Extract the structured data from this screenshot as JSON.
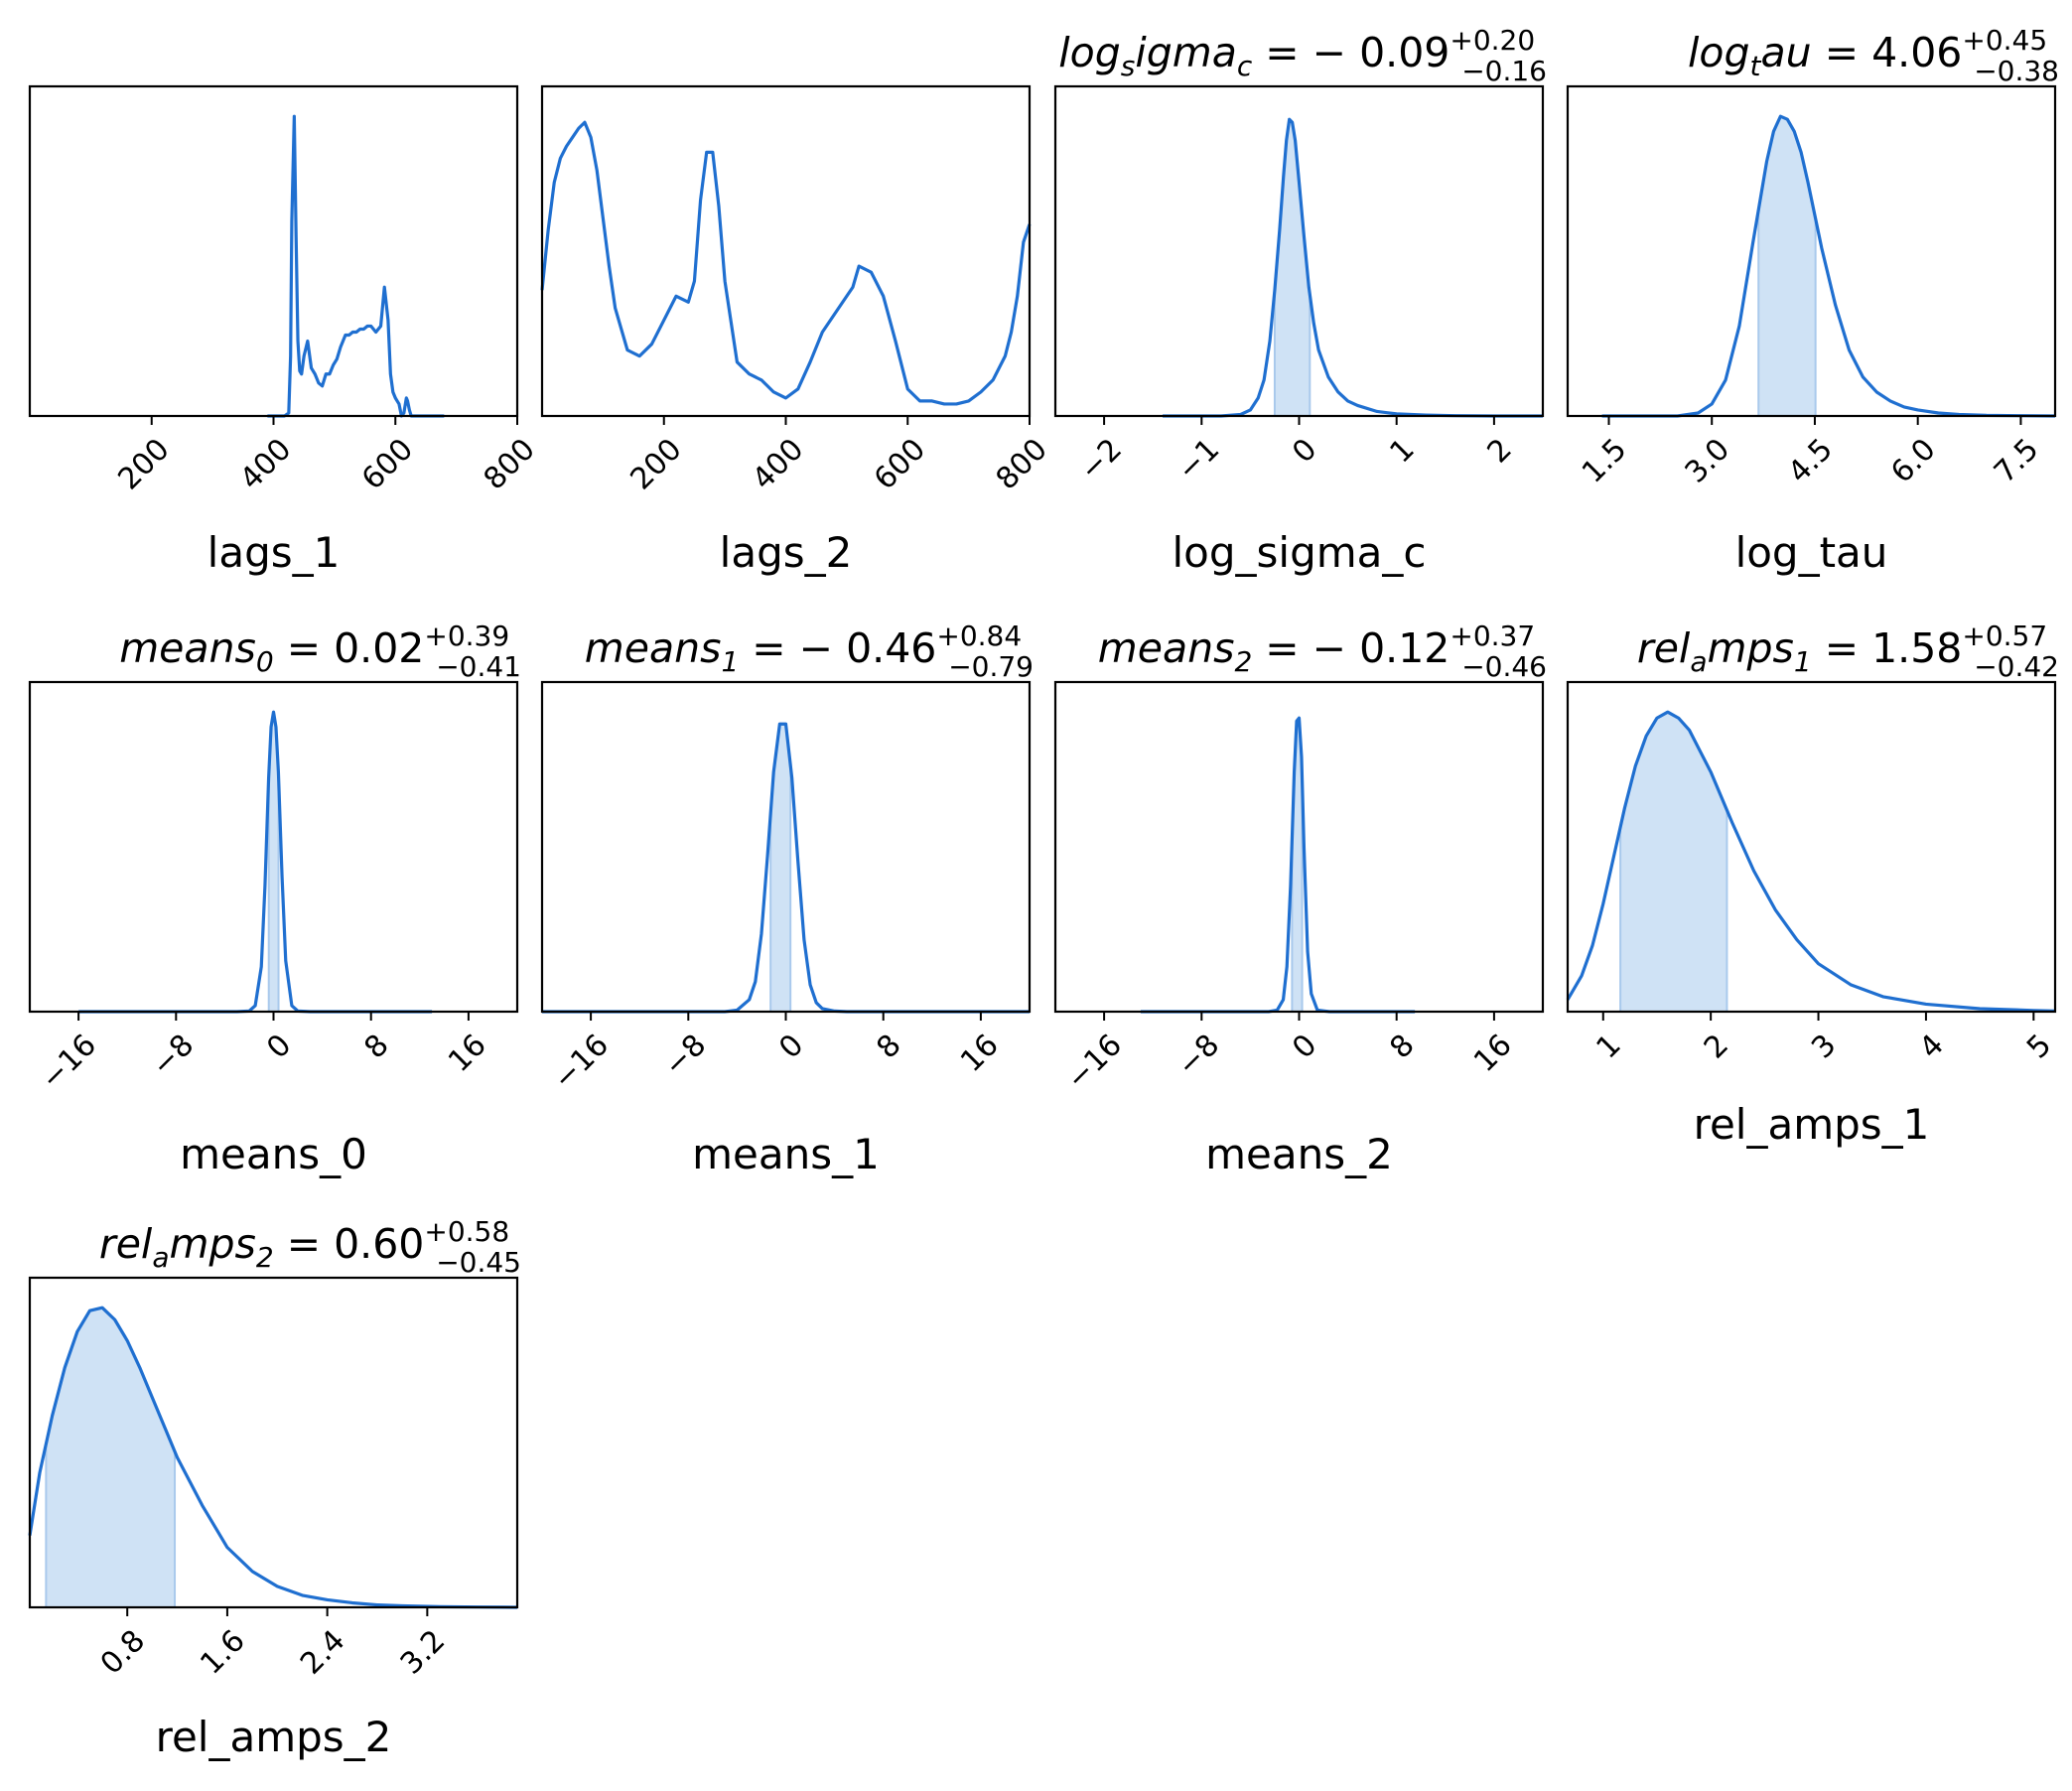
{
  "colors": {
    "line": "#1f6fd0",
    "fill": "#cfe2f5",
    "axis": "#000000"
  },
  "chart_data": [
    {
      "type": "line",
      "name": "lags_1",
      "title": null,
      "xlabel": "lags_1",
      "xlim": [
        0,
        800
      ],
      "ylim": [
        0,
        1.1
      ],
      "ticks": [
        200,
        400,
        600,
        800
      ],
      "x": [
        390,
        418,
        425,
        428,
        430,
        434,
        437,
        440,
        443,
        446,
        450,
        456,
        462,
        468,
        474,
        480,
        486,
        492,
        498,
        504,
        510,
        514,
        518,
        524,
        530,
        536,
        542,
        548,
        554,
        560,
        568,
        576,
        582,
        588,
        592,
        596,
        600,
        603,
        606,
        610,
        614,
        618,
        620,
        623,
        626,
        630,
        634,
        640,
        650,
        680
      ],
      "y": [
        0,
        0,
        0.01,
        0.2,
        0.65,
        1.0,
        0.6,
        0.25,
        0.15,
        0.14,
        0.2,
        0.25,
        0.16,
        0.14,
        0.11,
        0.1,
        0.14,
        0.14,
        0.17,
        0.19,
        0.23,
        0.25,
        0.27,
        0.27,
        0.28,
        0.28,
        0.29,
        0.29,
        0.3,
        0.3,
        0.28,
        0.3,
        0.43,
        0.32,
        0.14,
        0.08,
        0.06,
        0.05,
        0.04,
        0.0,
        0.01,
        0.06,
        0.05,
        0.02,
        0.0,
        0.0,
        0.0,
        0.0,
        0.0,
        0.0
      ],
      "band": null
    },
    {
      "type": "line",
      "name": "lags_2",
      "title": null,
      "xlabel": "lags_2",
      "xlim": [
        0,
        800
      ],
      "ylim": [
        0,
        1.1
      ],
      "ticks": [
        200,
        400,
        600,
        800
      ],
      "x": [
        0,
        10,
        20,
        30,
        40,
        50,
        60,
        70,
        80,
        90,
        100,
        110,
        120,
        140,
        160,
        180,
        200,
        220,
        240,
        250,
        260,
        270,
        280,
        290,
        300,
        320,
        340,
        360,
        380,
        400,
        420,
        440,
        460,
        480,
        500,
        510,
        520,
        540,
        560,
        580,
        600,
        620,
        640,
        660,
        680,
        700,
        720,
        740,
        760,
        770,
        780,
        790,
        800
      ],
      "y": [
        0.42,
        0.62,
        0.78,
        0.86,
        0.9,
        0.93,
        0.96,
        0.98,
        0.93,
        0.82,
        0.66,
        0.5,
        0.36,
        0.22,
        0.2,
        0.24,
        0.32,
        0.4,
        0.38,
        0.45,
        0.72,
        0.88,
        0.88,
        0.7,
        0.45,
        0.18,
        0.14,
        0.12,
        0.08,
        0.06,
        0.09,
        0.18,
        0.28,
        0.34,
        0.4,
        0.43,
        0.5,
        0.48,
        0.4,
        0.25,
        0.09,
        0.05,
        0.05,
        0.04,
        0.04,
        0.05,
        0.08,
        0.12,
        0.2,
        0.28,
        0.4,
        0.58,
        0.64
      ],
      "band": null
    },
    {
      "type": "line",
      "name": "log_sigma_c",
      "title": "log_sigma_c = -0.09 +0.20 -0.16",
      "t_base": "log",
      "t_sub": "s",
      "t_rest": "igma",
      "t_sub2": "c",
      "t_val": " = − 0.09",
      "t_up": "+0.20",
      "t_dn": "−0.16",
      "xlabel": "log_sigma_c",
      "xlim": [
        -2.5,
        2.5
      ],
      "ylim": [
        0,
        1.1
      ],
      "ticks": [
        -2,
        -1,
        0,
        1,
        2
      ],
      "tick_labels": [
        "−2",
        "−1",
        "0",
        "1",
        "2"
      ],
      "x": [
        -1.4,
        -0.8,
        -0.6,
        -0.5,
        -0.42,
        -0.36,
        -0.3,
        -0.25,
        -0.2,
        -0.16,
        -0.13,
        -0.1,
        -0.07,
        -0.04,
        0.0,
        0.05,
        0.1,
        0.15,
        0.2,
        0.3,
        0.4,
        0.5,
        0.6,
        0.8,
        1.0,
        1.3,
        1.6,
        2.0,
        2.5
      ],
      "y": [
        0,
        0,
        0.005,
        0.02,
        0.06,
        0.12,
        0.25,
        0.42,
        0.62,
        0.8,
        0.92,
        0.99,
        0.98,
        0.92,
        0.78,
        0.6,
        0.43,
        0.31,
        0.22,
        0.13,
        0.08,
        0.05,
        0.035,
        0.015,
        0.007,
        0.003,
        0.001,
        0,
        0
      ],
      "band": [
        -0.25,
        0.11
      ]
    },
    {
      "type": "line",
      "name": "log_tau",
      "title": "log_tau = 4.06 +0.45 -0.38",
      "t_base": "log",
      "t_sub": "t",
      "t_rest": "au",
      "t_sub2": "",
      "t_val": " = 4.06",
      "t_up": "+0.45",
      "t_dn": "−0.38",
      "xlabel": "log_tau",
      "xlim": [
        0.9,
        8.0
      ],
      "ylim": [
        0,
        1.1
      ],
      "ticks": [
        1.5,
        3.0,
        4.5,
        6.0,
        7.5
      ],
      "tick_labels": [
        "1.5",
        "3.0",
        "4.5",
        "6.0",
        "7.5"
      ],
      "x": [
        1.4,
        2.5,
        2.8,
        3.0,
        3.2,
        3.4,
        3.6,
        3.8,
        3.9,
        4.0,
        4.1,
        4.2,
        4.3,
        4.4,
        4.5,
        4.6,
        4.8,
        5.0,
        5.2,
        5.4,
        5.6,
        5.8,
        6.0,
        6.3,
        6.6,
        7.0,
        7.5,
        8.0
      ],
      "y": [
        0,
        0,
        0.01,
        0.04,
        0.12,
        0.3,
        0.58,
        0.85,
        0.95,
        1.0,
        0.99,
        0.95,
        0.88,
        0.78,
        0.67,
        0.56,
        0.37,
        0.22,
        0.13,
        0.08,
        0.05,
        0.03,
        0.02,
        0.01,
        0.005,
        0.002,
        0.001,
        0
      ],
      "band": [
        3.68,
        4.51
      ]
    },
    {
      "type": "line",
      "name": "means_0",
      "title": "means_0 = 0.02 +0.39 -0.41",
      "t_base": "means",
      "t_sub": "0",
      "t_rest": "",
      "t_sub2": "",
      "t_val": " = 0.02",
      "t_up": "+0.39",
      "t_dn": "−0.41",
      "xlabel": "means_0",
      "xlim": [
        -20,
        20
      ],
      "ylim": [
        0,
        1.1
      ],
      "ticks": [
        -16,
        -8,
        0,
        8,
        16
      ],
      "tick_labels": [
        "−16",
        "−8",
        "0",
        "8",
        "16"
      ],
      "x": [
        -16,
        -3,
        -2,
        -1.5,
        -1,
        -0.7,
        -0.4,
        -0.2,
        0,
        0.2,
        0.4,
        0.7,
        1,
        1.5,
        2,
        3,
        13
      ],
      "y": [
        0,
        0,
        0.002,
        0.02,
        0.15,
        0.42,
        0.78,
        0.95,
        1.0,
        0.95,
        0.8,
        0.45,
        0.17,
        0.02,
        0.002,
        0,
        0
      ],
      "band": [
        -0.39,
        0.41
      ]
    },
    {
      "type": "line",
      "name": "means_1",
      "title": "means_1 = -0.46 +0.84 -0.79",
      "t_base": "means",
      "t_sub": "1",
      "t_rest": "",
      "t_sub2": "",
      "t_val": " = − 0.46",
      "t_up": "+0.84",
      "t_dn": "−0.79",
      "xlabel": "means_1",
      "xlim": [
        -20,
        20
      ],
      "ylim": [
        0,
        1.1
      ],
      "ticks": [
        -16,
        -8,
        0,
        8,
        16
      ],
      "tick_labels": [
        "−16",
        "−8",
        "0",
        "8",
        "16"
      ],
      "x": [
        -20,
        -5,
        -4,
        -3,
        -2.5,
        -2,
        -1.5,
        -1,
        -0.5,
        0,
        0.5,
        1,
        1.5,
        2,
        2.5,
        3,
        4,
        5,
        20
      ],
      "y": [
        0,
        0,
        0.005,
        0.04,
        0.1,
        0.26,
        0.52,
        0.8,
        0.96,
        0.96,
        0.78,
        0.5,
        0.24,
        0.09,
        0.03,
        0.01,
        0.002,
        0,
        0
      ],
      "band": [
        -1.25,
        0.38
      ]
    },
    {
      "type": "line",
      "name": "means_2",
      "title": "means_2 = -0.12 +0.37 -0.46",
      "t_base": "means",
      "t_sub": "2",
      "t_rest": "",
      "t_sub2": "",
      "t_val": " = − 0.12",
      "t_up": "+0.37",
      "t_dn": "−0.46",
      "xlabel": "means_2",
      "xlim": [
        -20,
        20
      ],
      "ylim": [
        0,
        1.1
      ],
      "ticks": [
        -16,
        -8,
        0,
        8,
        16
      ],
      "tick_labels": [
        "−16",
        "−8",
        "0",
        "8",
        "16"
      ],
      "x": [
        -13,
        -2.5,
        -1.8,
        -1.3,
        -1,
        -0.7,
        -0.4,
        -0.2,
        0,
        0.2,
        0.4,
        0.7,
        1,
        1.5,
        2.5,
        9.5
      ],
      "y": [
        0,
        0,
        0.005,
        0.04,
        0.15,
        0.42,
        0.8,
        0.97,
        0.98,
        0.85,
        0.55,
        0.2,
        0.06,
        0.005,
        0,
        0
      ],
      "band": [
        -0.58,
        0.25
      ]
    },
    {
      "type": "line",
      "name": "rel_amps_1",
      "title": "rel_amps_1 = 1.58 +0.57 -0.42",
      "t_base": "rel",
      "t_sub": "a",
      "t_rest": "mps",
      "t_sub2": "1",
      "t_val": " = 1.58",
      "t_up": "+0.57",
      "t_dn": "−0.42",
      "xlabel": "rel_amps_1",
      "xlim": [
        0.67,
        5.2
      ],
      "ylim": [
        0,
        1.1
      ],
      "ticks": [
        1,
        2,
        3,
        4,
        5
      ],
      "tick_labels": [
        "1",
        "2",
        "3",
        "4",
        "5"
      ],
      "x": [
        0.67,
        0.8,
        0.9,
        1.0,
        1.1,
        1.2,
        1.3,
        1.4,
        1.5,
        1.6,
        1.7,
        1.8,
        1.9,
        2.0,
        2.2,
        2.4,
        2.6,
        2.8,
        3.0,
        3.3,
        3.6,
        4.0,
        4.5,
        5.0,
        5.2
      ],
      "y": [
        0.04,
        0.12,
        0.22,
        0.36,
        0.52,
        0.68,
        0.82,
        0.92,
        0.98,
        1.0,
        0.98,
        0.94,
        0.87,
        0.8,
        0.63,
        0.47,
        0.34,
        0.24,
        0.16,
        0.09,
        0.05,
        0.025,
        0.01,
        0.004,
        0.002
      ],
      "band": [
        1.16,
        2.15
      ]
    },
    {
      "type": "line",
      "name": "rel_amps_2",
      "title": "rel_amps_2 = 0.60 +0.58 -0.45",
      "t_base": "rel",
      "t_sub": "a",
      "t_rest": "mps",
      "t_sub2": "2",
      "t_val": " = 0.60",
      "t_up": "+0.58",
      "t_dn": "−0.45",
      "xlabel": "rel_amps_2",
      "xlim": [
        0.02,
        3.92
      ],
      "ylim": [
        0,
        1.1
      ],
      "ticks": [
        0.8,
        1.6,
        2.4,
        3.2
      ],
      "tick_labels": [
        "0.8",
        "1.6",
        "2.4",
        "3.2"
      ],
      "x": [
        0.02,
        0.1,
        0.2,
        0.3,
        0.4,
        0.5,
        0.6,
        0.7,
        0.8,
        0.9,
        1.0,
        1.1,
        1.2,
        1.3,
        1.4,
        1.6,
        1.8,
        2.0,
        2.2,
        2.4,
        2.6,
        2.8,
        3.0,
        3.3,
        3.6,
        3.92
      ],
      "y": [
        0.24,
        0.45,
        0.64,
        0.8,
        0.92,
        0.99,
        1.0,
        0.96,
        0.89,
        0.8,
        0.7,
        0.6,
        0.5,
        0.42,
        0.34,
        0.2,
        0.12,
        0.07,
        0.04,
        0.025,
        0.015,
        0.008,
        0.005,
        0.002,
        0.001,
        0.0
      ],
      "band": [
        0.15,
        1.18
      ]
    }
  ]
}
